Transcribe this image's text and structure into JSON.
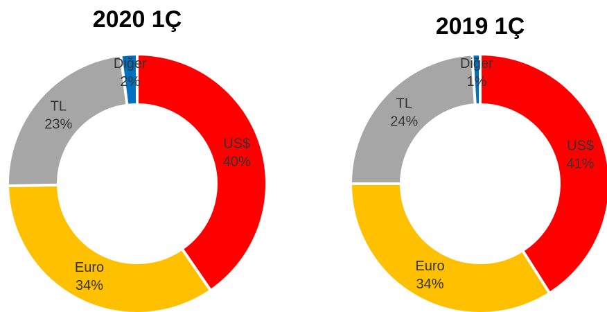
{
  "chart_data": [
    {
      "type": "donut",
      "title": "2020 1Ç",
      "categories": [
        "US$",
        "Euro",
        "TL",
        "Diğer"
      ],
      "values": [
        40,
        34,
        23,
        2
      ],
      "value_labels": [
        "40%",
        "34%",
        "23%",
        "2%"
      ],
      "colors": [
        "#ff0000",
        "#ffc000",
        "#a6a6a6",
        "#0070c0"
      ]
    },
    {
      "type": "donut",
      "title": "2019 1Ç",
      "categories": [
        "US$",
        "Euro",
        "TL",
        "Diğer"
      ],
      "values": [
        41,
        34,
        24,
        1
      ],
      "value_labels": [
        "41%",
        "34%",
        "24%",
        "1%"
      ],
      "colors": [
        "#ff0000",
        "#ffc000",
        "#a6a6a6",
        "#0070c0"
      ]
    }
  ]
}
